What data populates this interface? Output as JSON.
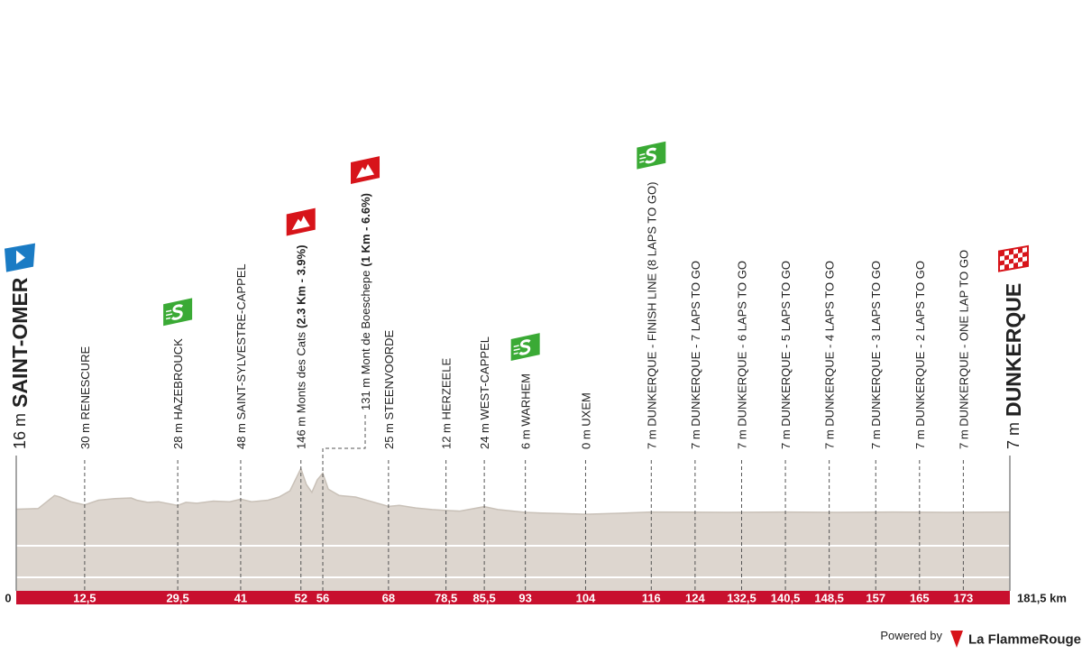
{
  "chart_data": {
    "type": "profile",
    "x": [
      0,
      4,
      7,
      8,
      10,
      12.5,
      15,
      18,
      21,
      22,
      24,
      26,
      29.5,
      31,
      33,
      36,
      39,
      41,
      43,
      46,
      48,
      50,
      52,
      53,
      54,
      55,
      56,
      57,
      59,
      62,
      65,
      68,
      70,
      73,
      76,
      78.5,
      81,
      85.5,
      88,
      93,
      96,
      100,
      104,
      110,
      116,
      130,
      140,
      150,
      160,
      170,
      181.5
    ],
    "values": [
      16,
      18,
      60,
      55,
      40,
      30,
      45,
      50,
      52,
      45,
      38,
      40,
      28,
      38,
      35,
      42,
      40,
      48,
      40,
      45,
      55,
      75,
      146,
      95,
      70,
      110,
      131,
      80,
      60,
      55,
      40,
      25,
      28,
      20,
      15,
      12,
      10,
      24,
      15,
      6,
      4,
      2,
      0,
      3,
      7,
      6,
      7,
      6,
      7,
      6,
      7
    ],
    "color": "#ddd6cf",
    "xlim": [
      0,
      181.5
    ],
    "ylim": [
      -245,
      1500
    ],
    "xticks": [
      0,
      {
        "value": 12.5,
        "label": "12,5"
      },
      {
        "value": 29.5,
        "label": "29,5"
      },
      41,
      52,
      56,
      68,
      {
        "value": 78.5,
        "label": "78,5"
      },
      {
        "value": 85.5,
        "label": "85,5"
      },
      93,
      104,
      116,
      124,
      {
        "value": 132.5,
        "label": "132,5"
      },
      {
        "value": 140.5,
        "label": "140,5"
      },
      {
        "value": 148.5,
        "label": "148,5"
      },
      157,
      165,
      173,
      {
        "value": 181.5,
        "label": "181,5 km"
      }
    ],
    "start": {
      "elevation": "16 m",
      "name": "SAINT-OMER"
    },
    "finish": {
      "elevation": "7 m",
      "name": "DUNKERQUE"
    },
    "annotations": [
      {
        "label": "30 m RENESCURE"
      },
      {
        "label": "28 m HAZEBROUCK",
        "icon": "sprint"
      },
      {
        "label": "48 m SAINT-SYLVESTRE-CAPPEL"
      },
      {
        "label": "146 m Monts des Cats",
        "detail": "(2.3 Km - 3.9%)",
        "icon": "climb"
      },
      {
        "label": "131 m Mont de Boeschepe",
        "detail": "(1 Km - 6.6%)",
        "icon": "climb"
      },
      {
        "label": "25 m STEENVOORDE"
      },
      {
        "label": "12 m HERZEELE"
      },
      {
        "label": "24 m WEST-CAPPEL"
      },
      {
        "label": "6 m WARHEM",
        "icon": "sprint"
      },
      {
        "label": "0 m UXEM"
      },
      {
        "label": "7 m DUNKERQUE - FINISH LINE (8 LAPS TO GO)",
        "icon": "sprint"
      },
      {
        "label": "7 m DUNKERQUE - 7 LAPS TO GO"
      },
      {
        "label": "7 m DUNKERQUE - 6 LAPS TO GO"
      },
      {
        "label": "7 m DUNKERQUE - 5 LAPS TO GO"
      },
      {
        "label": "7 m DUNKERQUE - 4 LAPS TO GO"
      },
      {
        "label": "7 m DUNKERQUE - 3 LAPS TO GO"
      },
      {
        "label": "7 m DUNKERQUE - 2 LAPS TO GO"
      },
      {
        "label": "7 m DUNKERQUE - ONE LAP TO GO"
      }
    ],
    "footer": {
      "powered_by": "Powered by",
      "brand": "La FlammeRouge"
    }
  }
}
